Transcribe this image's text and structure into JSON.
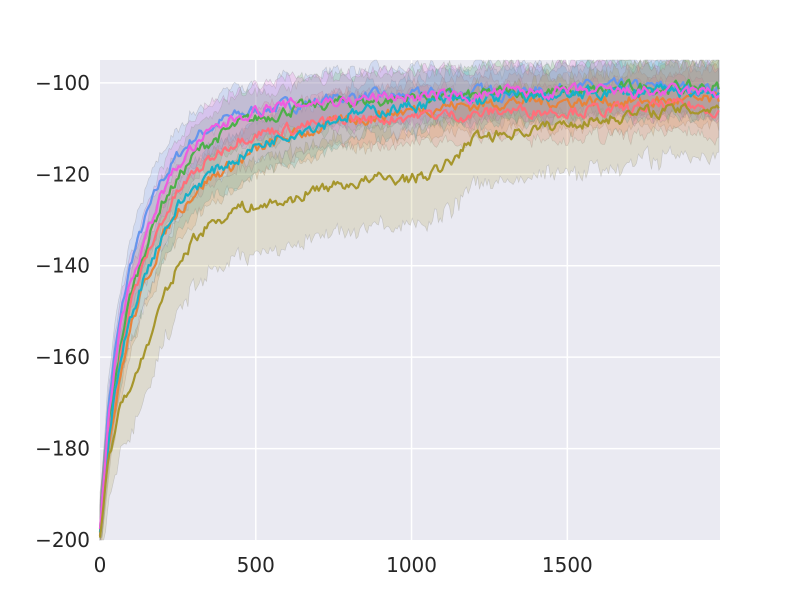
{
  "chart_data": {
    "type": "line",
    "title": "",
    "xlabel": "",
    "ylabel": "",
    "xlim": [
      0,
      1990
    ],
    "ylim": [
      -200,
      -95
    ],
    "xticks": [
      0,
      500,
      1000,
      1500
    ],
    "xtick_labels": [
      "0",
      "500",
      "1000",
      "1500"
    ],
    "yticks": [
      -200,
      -180,
      -160,
      -140,
      -120,
      -100
    ],
    "ytick_labels": [
      "−200",
      "−180",
      "−160",
      "−140",
      "−120",
      "−100"
    ],
    "grid": true,
    "legend": "none",
    "shaded_band": "variability band around each series",
    "colors": {
      "background": "#eaeaf2",
      "grid": "#ffffff"
    },
    "x": [
      0,
      25,
      50,
      75,
      100,
      150,
      200,
      250,
      300,
      350,
      400,
      450,
      500,
      600,
      700,
      800,
      900,
      1000,
      1100,
      1200,
      1300,
      1400,
      1500,
      1600,
      1700,
      1800,
      1900,
      1990
    ],
    "series": [
      {
        "color": "#6495ed",
        "values": [
          -198,
          -172,
          -158,
          -148,
          -139,
          -129,
          -121,
          -116,
          -112,
          -110,
          -108,
          -107,
          -106,
          -105,
          -104,
          -103,
          -103,
          -103,
          -102,
          -102,
          -102,
          -102,
          -101,
          -101,
          -101,
          -101,
          -101,
          -101
        ],
        "band": 5
      },
      {
        "color": "#4daf4a",
        "values": [
          -198,
          -176,
          -164,
          -154,
          -146,
          -135,
          -126,
          -121,
          -116,
          -113,
          -111,
          -109,
          -108,
          -106,
          -105,
          -104,
          -104,
          -103,
          -103,
          -103,
          -102,
          -102,
          -102,
          -102,
          -101,
          -101,
          -101,
          -101
        ],
        "band": 5
      },
      {
        "color": "#e8833a",
        "values": [
          -199,
          -180,
          -170,
          -161,
          -153,
          -143,
          -134,
          -128,
          -124,
          -121,
          -119,
          -117,
          -115,
          -112,
          -110,
          -108,
          -107,
          -106,
          -105,
          -105,
          -104,
          -104,
          -104,
          -104,
          -104,
          -104,
          -104,
          -104
        ],
        "band": 5
      },
      {
        "color": "#ff6f7a",
        "values": [
          -199,
          -178,
          -166,
          -156,
          -148,
          -138,
          -130,
          -124,
          -120,
          -117,
          -114,
          -112,
          -111,
          -110,
          -109,
          -108,
          -108,
          -107,
          -107,
          -107,
          -106,
          -106,
          -106,
          -106,
          -106,
          -105,
          -105,
          -106
        ],
        "band": 5
      },
      {
        "color": "#17b0c8",
        "values": [
          -199,
          -179,
          -167,
          -158,
          -151,
          -141,
          -133,
          -127,
          -123,
          -120,
          -118,
          -116,
          -114,
          -111,
          -109,
          -107,
          -106,
          -105,
          -104,
          -104,
          -103,
          -103,
          -103,
          -102,
          -102,
          -102,
          -102,
          -102
        ],
        "band": 5
      },
      {
        "color": "#ee5ce0",
        "values": [
          -198,
          -174,
          -160,
          -150,
          -143,
          -133,
          -124,
          -118,
          -114,
          -111,
          -109,
          -107,
          -106,
          -105,
          -104,
          -104,
          -103,
          -103,
          -103,
          -103,
          -102,
          -102,
          -102,
          -102,
          -102,
          -102,
          -102,
          -102
        ],
        "band": 5
      },
      {
        "color": "#a6962c",
        "values": [
          -199,
          -183,
          -175,
          -169,
          -166,
          -158,
          -148,
          -140,
          -134,
          -131,
          -129,
          -127,
          -127,
          -126,
          -123,
          -122,
          -121,
          -121,
          -119,
          -112,
          -111,
          -110,
          -109,
          -108,
          -107,
          -106,
          -106,
          -105
        ],
        "band": 9
      }
    ]
  }
}
